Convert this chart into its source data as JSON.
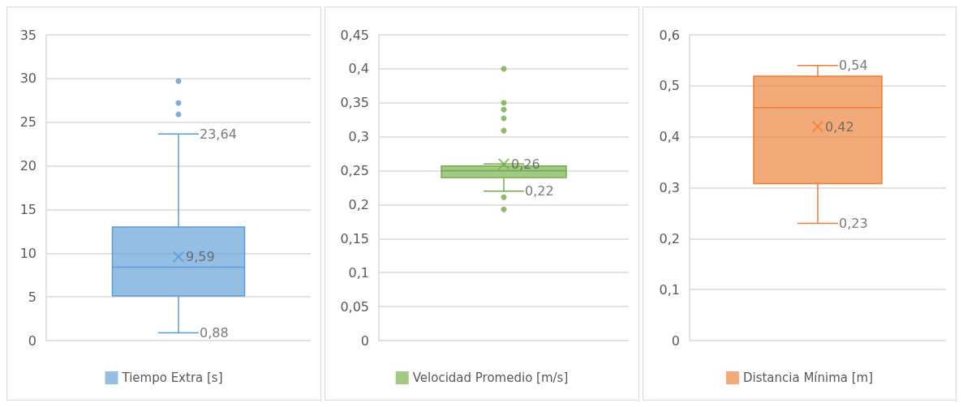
{
  "chart_data": [
    {
      "type": "box",
      "categories": [
        null
      ],
      "ylim": [
        0,
        35
      ],
      "yticks": [
        0,
        5,
        10,
        15,
        20,
        25,
        30,
        35
      ],
      "grid": "y",
      "legend": "bottom",
      "tick_labels": "y",
      "series": [
        {
          "name": "Tiempo Extra [s]",
          "color": "#5b9bd5",
          "boxes": [
            {
              "low": 0.88,
              "q1": 5.1,
              "median": 8.4,
              "q3": 13,
              "high": 23.64,
              "mean": 9.59,
              "outliers": [
                29.7,
                27.2,
                25.9
              ]
            }
          ]
        }
      ],
      "annotations": [
        "23,64",
        "9,59",
        "0,88"
      ]
    },
    {
      "type": "box",
      "categories": [
        null
      ],
      "ylim": [
        0,
        0.45
      ],
      "yticks": [
        0,
        {
          "value": 0.05,
          "label": "0,05"
        },
        {
          "value": 0.1,
          "label": "0,1"
        },
        {
          "value": 0.15,
          "label": "0,15"
        },
        {
          "value": 0.2,
          "label": "0,2"
        },
        {
          "value": 0.25,
          "label": "0,25"
        },
        {
          "value": 0.3,
          "label": "0,3"
        },
        {
          "value": 0.35,
          "label": "0,35"
        },
        {
          "value": 0.4,
          "label": "0,4"
        },
        {
          "value": 0.45,
          "label": "0,45"
        }
      ],
      "grid": "y",
      "legend": "bottom",
      "tick_labels": "y",
      "series": [
        {
          "name": "Velocidad Promedio [m/s]",
          "color": "#70ad47",
          "boxes": [
            {
              "low": 0.22,
              "q1": 0.24,
              "median": 0.25,
              "q3": 0.257,
              "high": 0.26,
              "mean": 0.26,
              "outliers": [
                0.4,
                0.35,
                0.34,
                0.327,
                0.309,
                0.211,
                0.193
              ]
            }
          ]
        }
      ],
      "annotations": [
        "0,26",
        "0,22"
      ]
    },
    {
      "type": "box",
      "categories": [
        null
      ],
      "ylim": [
        0,
        0.6
      ],
      "yticks": [
        0,
        {
          "value": 0.1,
          "label": "0,1"
        },
        {
          "value": 0.2,
          "label": "0,2"
        },
        {
          "value": 0.3,
          "label": "0,3"
        },
        {
          "value": 0.4,
          "label": "0,4"
        },
        {
          "value": 0.5,
          "label": "0,5"
        },
        {
          "value": 0.6,
          "label": "0,6"
        }
      ],
      "grid": "y",
      "legend": "bottom",
      "tick_labels": "y",
      "series": [
        {
          "name": "Distancia Mínima [m]",
          "color": "#ed7d31",
          "boxes": [
            {
              "low": 0.23,
              "q1": 0.308,
              "median": 0.457,
              "q3": 0.519,
              "high": 0.54,
              "mean": 0.42
            }
          ]
        }
      ],
      "annotations": [
        "0,54",
        "0,42",
        "0,23"
      ]
    }
  ]
}
